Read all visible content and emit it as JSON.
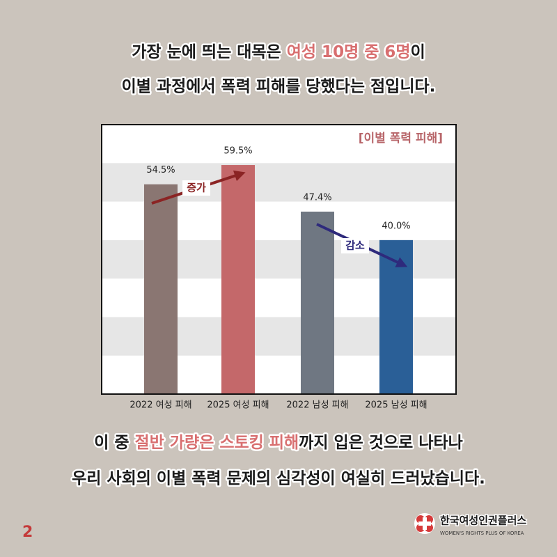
{
  "headline": {
    "line1": [
      "가장 눈에 띄는 대목은 ",
      "여성 10명 중 6명",
      "이"
    ],
    "line2": "이별 과정에서 폭력 피해를 당했다는 점입니다."
  },
  "chart_data": {
    "type": "bar",
    "title": "[이별 폭력 피해]",
    "categories": [
      "2022 여성 피해",
      "2025 여성 피해",
      "2022 남성 피해",
      "2025 남성 피해"
    ],
    "values": [
      54.5,
      59.5,
      47.4,
      40.0
    ],
    "value_labels": [
      "54.5%",
      "59.5%",
      "47.4%",
      "40.0%"
    ],
    "colors": [
      "#8a7672",
      "#c4686a",
      "#6f7782",
      "#2a5f97"
    ],
    "ylim": [
      0,
      70
    ],
    "grid": true,
    "annotations": [
      {
        "text": "증가",
        "color": "#8b2424"
      },
      {
        "text": "감소",
        "color": "#2e2a7c"
      }
    ]
  },
  "footer_text": {
    "line1": [
      "이 중 ",
      "절반 가량은 스토킹 피해",
      "까지 입은 것으로 나타나"
    ],
    "line2": "우리 사회의 이별 폭력 문제의 심각성이 여실히 드러났습니다."
  },
  "page_number": "2",
  "logo": {
    "name": "한국여성인권플러스",
    "subtitle": "WOMEN'S RIGHTS PLUS OF KOREA"
  }
}
